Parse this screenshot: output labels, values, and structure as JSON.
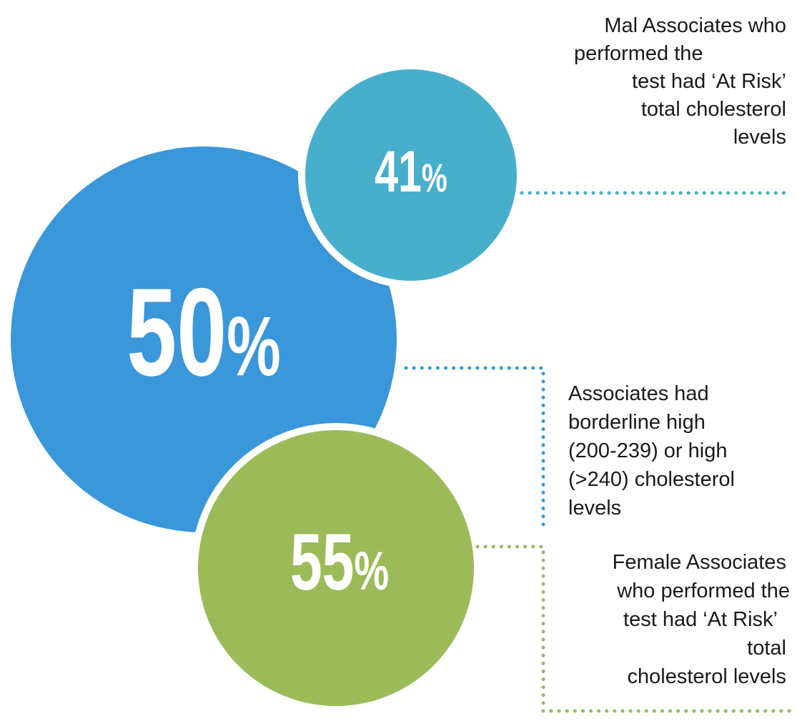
{
  "stats": [
    {
      "number": "41",
      "unit": "%",
      "lines": [
        "Mal Associates who",
        "performed the",
        "test had ‘At Risk’",
        "total cholesterol",
        "levels"
      ]
    },
    {
      "number": "50",
      "unit": "%",
      "lines": [
        "Associates had",
        "borderline high",
        "(200-239) or high",
        "(>240) cholesterol",
        "levels"
      ]
    },
    {
      "number": "55",
      "unit": "%",
      "lines": [
        "Female Associates",
        "who performed the",
        "test had ‘At Risk’",
        "total",
        "cholesterol levels"
      ]
    }
  ]
}
